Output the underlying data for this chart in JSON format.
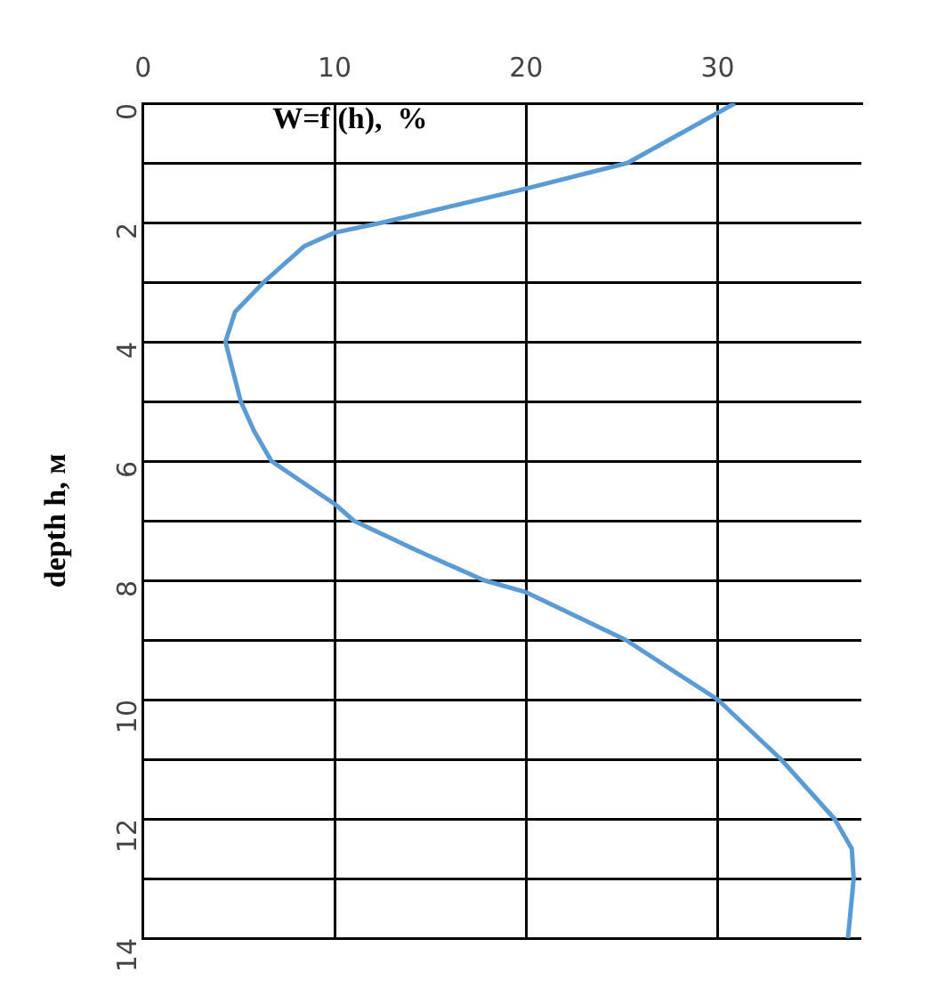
{
  "chart_data": {
    "type": "line",
    "xlabel": "W=f (h),  %",
    "ylabel": "depth h, м",
    "x": [
      30.9,
      25.3,
      20,
      12.5,
      10,
      8.4,
      6.3,
      4.8,
      4.3,
      5.1,
      5.8,
      6.7,
      10,
      11.0,
      14.3,
      17.8,
      20,
      25.2,
      30.0,
      33.3,
      36.1,
      37.0,
      37.1,
      36.8
    ],
    "series": [
      {
        "color": "#5b9bd5",
        "values": [
          0,
          1,
          1.43,
          2,
          2.17,
          2.4,
          3,
          3.5,
          4,
          5,
          5.5,
          6,
          6.72,
          7,
          7.5,
          8,
          8.2,
          9,
          10,
          11,
          12,
          12.5,
          13,
          14
        ]
      }
    ],
    "xlim": [
      0,
      37.5
    ],
    "xticks": [
      0,
      10,
      20,
      30
    ],
    "ylim": [
      14,
      0
    ],
    "yticks": [
      0,
      {
        "value": 1,
        "label": null
      },
      2,
      {
        "value": 3,
        "label": null
      },
      4,
      {
        "value": 5,
        "label": null
      },
      6,
      {
        "value": 7,
        "label": null
      },
      8,
      {
        "value": 9,
        "label": null
      },
      10,
      {
        "value": 11,
        "label": null
      },
      12,
      {
        "value": 13,
        "label": null
      },
      14
    ],
    "grid": true,
    "legend": false,
    "marker": "none",
    "line_style": "solid"
  }
}
